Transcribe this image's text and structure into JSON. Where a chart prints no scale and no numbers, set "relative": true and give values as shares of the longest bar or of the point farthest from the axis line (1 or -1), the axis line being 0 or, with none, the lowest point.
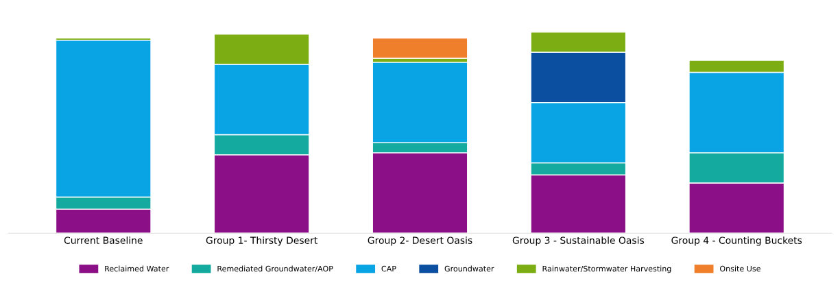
{
  "chart_data": {
    "type": "bar",
    "stacked": true,
    "relative": true,
    "legend": "bottom",
    "categories": [
      "Current Baseline",
      "Group 1- Thirsty Desert",
      "Group 2- Desert Oasis",
      "Group 3 - Sustainable Oasis",
      "Group 4 - Counting Buckets"
    ],
    "series": [
      {
        "name": "Reclaimed Water",
        "color": "#8b0f86",
        "values": [
          0.12,
          0.39,
          0.4,
          0.29,
          0.25
        ]
      },
      {
        "name": "Remediated Groundwater/AOP",
        "color": "#14aaa0",
        "values": [
          0.06,
          0.1,
          0.05,
          0.06,
          0.15
        ]
      },
      {
        "name": "CAP",
        "color": "#08a4e4",
        "values": [
          0.78,
          0.35,
          0.4,
          0.3,
          0.4
        ]
      },
      {
        "name": "Groundwater",
        "color": "#0b4fa0",
        "values": [
          null,
          null,
          null,
          0.25,
          null
        ]
      },
      {
        "name": "Rainwater/Stormwater Harvesting",
        "color": "#7cad12",
        "values": [
          0.01,
          0.15,
          0.02,
          0.1,
          0.06
        ]
      },
      {
        "name": "Onsite Use",
        "color": "#f07f2c",
        "values": [
          null,
          null,
          0.1,
          null,
          null
        ]
      }
    ]
  }
}
